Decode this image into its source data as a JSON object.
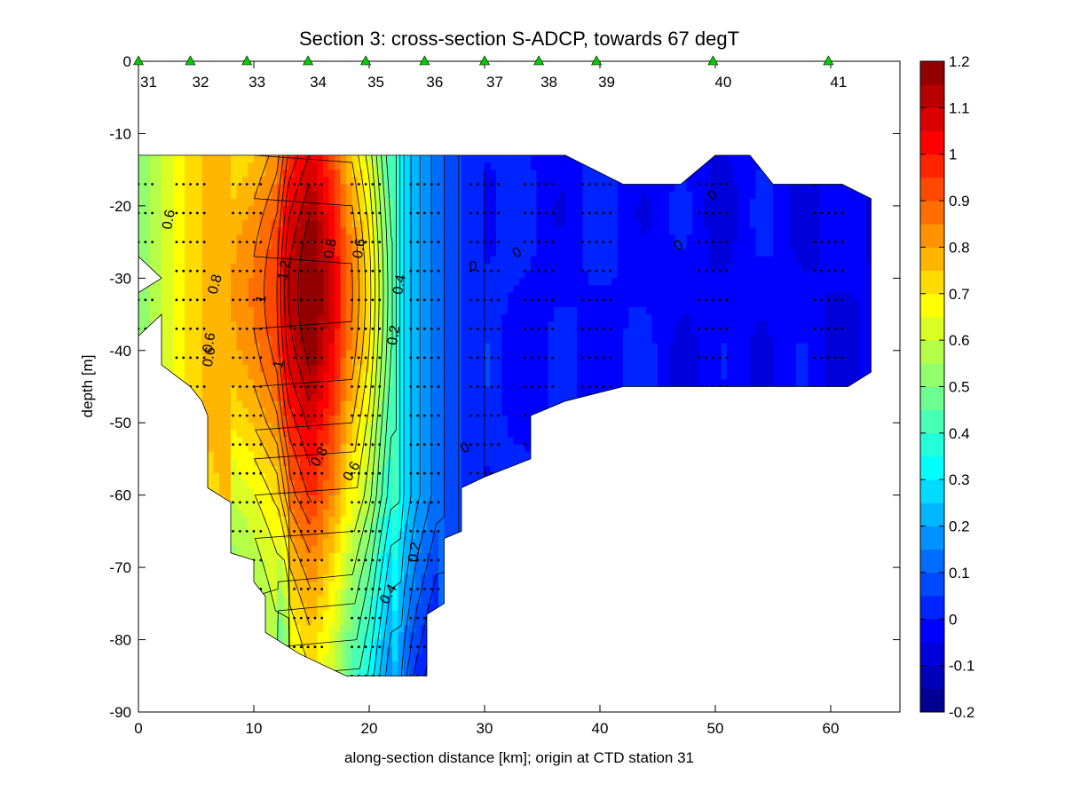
{
  "chart_data": {
    "type": "heatmap",
    "subtype": "filled-contour",
    "title": "Section 3: cross-section S-ADCP, towards 67 degT",
    "xlabel": "along-section distance [km]; origin at CTD station 31",
    "ylabel": "depth [m]",
    "xlim": [
      0,
      66
    ],
    "ylim": [
      -90,
      0
    ],
    "xticks": [
      0,
      10,
      20,
      30,
      40,
      50,
      60
    ],
    "yticks": [
      0,
      -10,
      -20,
      -30,
      -40,
      -50,
      -60,
      -70,
      -80,
      -90
    ],
    "grid": false,
    "colorbar": {
      "colormap": "jet",
      "range": [
        -0.2,
        1.2
      ],
      "levels": 28,
      "ticks": [
        "1.2",
        "1.1",
        "1",
        "0.9",
        "0.8",
        "0.7",
        "0.6",
        "0.5",
        "0.4",
        "0.3",
        "0.2",
        "0.1",
        "0",
        "-0.1",
        "-0.2"
      ]
    },
    "stations": [
      {
        "label": "31",
        "x": 0
      },
      {
        "label": "32",
        "x": 4.5
      },
      {
        "label": "33",
        "x": 9.4
      },
      {
        "label": "34",
        "x": 14.7
      },
      {
        "label": "35",
        "x": 19.7
      },
      {
        "label": "36",
        "x": 24.8
      },
      {
        "label": "37",
        "x": 30
      },
      {
        "label": "38",
        "x": 34.7
      },
      {
        "label": "39",
        "x": 39.7
      },
      {
        "label": "40",
        "x": 49.8
      },
      {
        "label": "41",
        "x": 59.8
      }
    ],
    "station_marker_color": "#00cc00",
    "data_region": [
      [
        0,
        -13
      ],
      [
        27.5,
        -13
      ],
      [
        30,
        -13
      ],
      [
        35,
        -13
      ],
      [
        37,
        -13
      ],
      [
        42,
        -17
      ],
      [
        47,
        -17
      ],
      [
        50,
        -13
      ],
      [
        53,
        -13
      ],
      [
        55,
        -17
      ],
      [
        61,
        -17
      ],
      [
        63.5,
        -19
      ],
      [
        63.5,
        -43
      ],
      [
        61.5,
        -45
      ],
      [
        42,
        -45
      ],
      [
        37,
        -47
      ],
      [
        34,
        -49
      ],
      [
        34,
        -55
      ],
      [
        30,
        -57.5
      ],
      [
        28,
        -59
      ],
      [
        28,
        -65
      ],
      [
        26.5,
        -66
      ],
      [
        26.5,
        -75
      ],
      [
        25,
        -76.5
      ],
      [
        25,
        -85
      ],
      [
        18,
        -85
      ],
      [
        14,
        -82
      ],
      [
        11,
        -79
      ],
      [
        11,
        -74
      ],
      [
        10,
        -72
      ],
      [
        10,
        -69
      ],
      [
        8,
        -68
      ],
      [
        8,
        -61
      ],
      [
        6,
        -59
      ],
      [
        6,
        -49
      ],
      [
        5.5,
        -47
      ],
      [
        4.5,
        -45
      ],
      [
        2,
        -42
      ],
      [
        2,
        -35
      ],
      [
        0,
        -38
      ],
      [
        0,
        -32
      ],
      [
        2,
        -30
      ],
      [
        0,
        -27
      ]
    ],
    "velocity_profile": {
      "x": [
        0,
        2,
        4,
        6,
        8,
        10,
        12,
        13,
        15,
        17,
        18,
        20,
        21,
        22,
        23,
        24,
        26,
        28,
        30,
        35,
        40,
        45,
        50,
        55,
        60,
        64
      ],
      "v": [
        0.5,
        0.6,
        0.7,
        0.76,
        0.8,
        0.86,
        0.95,
        1.1,
        1.22,
        1.05,
        0.9,
        0.72,
        0.58,
        0.45,
        0.3,
        0.22,
        0.12,
        0.04,
        0.02,
        -0.02,
        0.0,
        -0.02,
        -0.04,
        -0.02,
        -0.05,
        -0.04
      ]
    },
    "contour_labels": [
      "0.6",
      "0.8",
      "0.6",
      "0.6",
      "1",
      "1",
      "1.2",
      "0.8",
      "0.6",
      "0.4",
      "0.2",
      "0",
      "0",
      "0",
      "0",
      "0",
      "0.8",
      "0.6",
      "0.2",
      "0.4"
    ],
    "series": []
  }
}
